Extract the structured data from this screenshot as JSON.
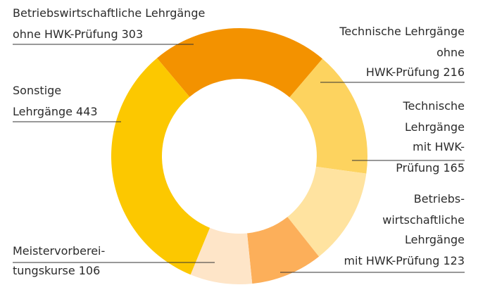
{
  "chart_data": {
    "type": "donut",
    "categories": [
      [
        "Betriebswirtschaftliche Lehrgänge",
        "ohne HWK-Prüfung"
      ],
      [
        "Technische Lehrgänge",
        "ohne",
        "HWK-Prüfung"
      ],
      [
        "Technische",
        "Lehrgänge",
        "mit HWK-",
        "Prüfung"
      ],
      [
        "Betriebs-",
        "wirtschaftliche",
        "Lehrgänge",
        "mit HWK-Prüfung"
      ],
      [
        "Meistervorberei-",
        "tungskurse"
      ],
      [
        "Sonstige",
        "Lehrgänge"
      ]
    ],
    "values": [
      303,
      216,
      165,
      123,
      106,
      443
    ],
    "colors": [
      "#f39200",
      "#fdd35f",
      "#ffe3a0",
      "#fcaf5a",
      "#fee5c8",
      "#fcc800"
    ]
  }
}
